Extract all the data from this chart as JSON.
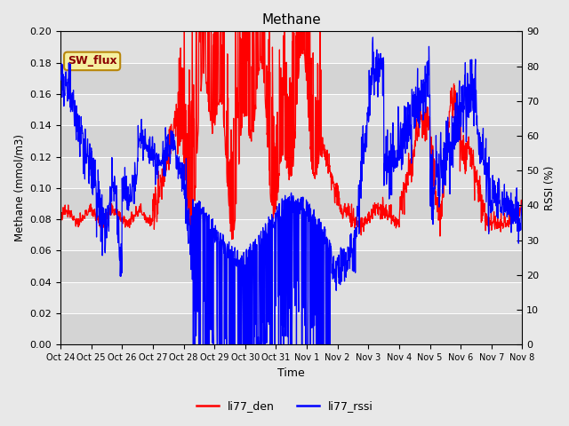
{
  "title": "Methane",
  "ylabel_left": "Methane (mmol/m3)",
  "ylabel_right": "RSSI (%)",
  "xlabel": "Time",
  "ylim_left": [
    0.0,
    0.2
  ],
  "ylim_right": [
    0,
    90
  ],
  "yticks_left": [
    0.0,
    0.02,
    0.04,
    0.06,
    0.08,
    0.1,
    0.12,
    0.14,
    0.16,
    0.18,
    0.2
  ],
  "yticks_right": [
    0,
    10,
    20,
    30,
    40,
    50,
    60,
    70,
    80,
    90
  ],
  "xtick_labels": [
    "Oct 24",
    "Oct 25",
    "Oct 26",
    "Oct 27",
    "Oct 28",
    "Oct 29",
    "Oct 30",
    "Oct 31",
    "Nov 1",
    "Nov 2",
    "Nov 3",
    "Nov 4",
    "Nov 5",
    "Nov 6",
    "Nov 7",
    "Nov 8"
  ],
  "line_color_den": "red",
  "line_color_rssi": "blue",
  "legend_labels": [
    "li77_den",
    "li77_rssi"
  ],
  "sw_flux_label": "SW_flux",
  "fig_bg_color": "#e8e8e8",
  "plot_bg_color": "#d4d4d4",
  "band_colors": [
    "#d4d4d4",
    "#e0e0e0"
  ]
}
